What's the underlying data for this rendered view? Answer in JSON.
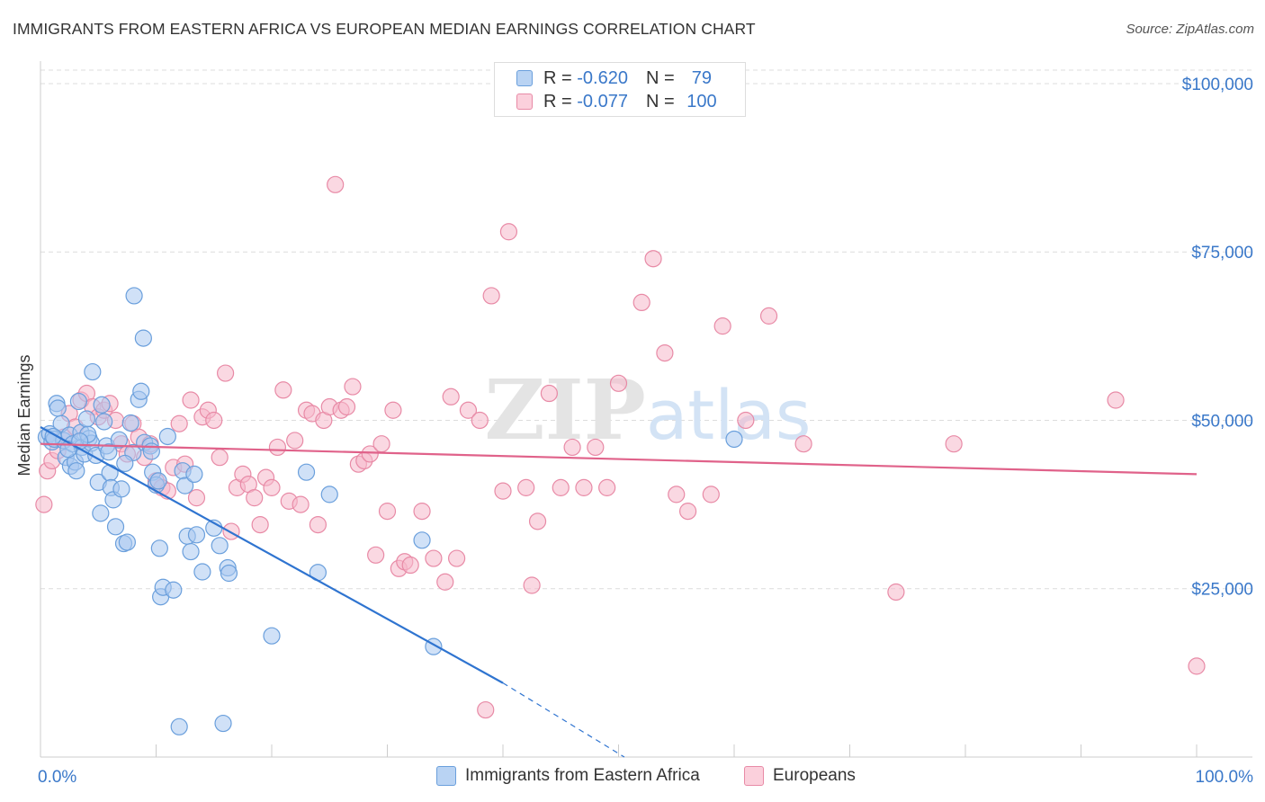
{
  "title": "IMMIGRANTS FROM EASTERN AFRICA VS EUROPEAN MEDIAN EARNINGS CORRELATION CHART",
  "source": "Source: ZipAtlas.com",
  "watermark": "ZIPatlas",
  "legend": {
    "rows": [
      {
        "r_label": "R = ",
        "r_value": "-0.620",
        "n_label": "N = ",
        "n_value": " 79",
        "color": "#9fc3ee",
        "border": "#6a9fdc"
      },
      {
        "r_label": "R = ",
        "r_value": "-0.077",
        "n_label": "N = ",
        "n_value": "100",
        "color": "#f7b9cb",
        "border": "#e88aa6"
      }
    ]
  },
  "chart_data": {
    "type": "scatter",
    "title": "IMMIGRANTS FROM EASTERN AFRICA VS EUROPEAN MEDIAN EARNINGS CORRELATION CHART",
    "xlabel": "",
    "ylabel": "Median Earnings",
    "xlim": [
      0,
      100
    ],
    "ylim": [
      0,
      102000
    ],
    "x_tick_labels": [
      "0.0%",
      "100.0%"
    ],
    "y_ticks": [
      25000,
      50000,
      75000,
      100000
    ],
    "y_tick_labels": [
      "$25,000",
      "$50,000",
      "$75,000",
      "$100,000"
    ],
    "grid": true,
    "legend_position": "top-center and bottom",
    "series": [
      {
        "name": "Immigrants from Eastern Africa",
        "color": "#6a9fdc",
        "fill": "#a9c9f0",
        "trend": {
          "x0": 0,
          "y0": 49000,
          "x1": 40,
          "y1": 11000,
          "dash_to_x": 50.5,
          "dash_to_y": 0,
          "color": "#2f74d0"
        },
        "points": [
          [
            0.5,
            47500
          ],
          [
            0.8,
            48000
          ],
          [
            1.0,
            46800
          ],
          [
            1.2,
            47200
          ],
          [
            1.4,
            52500
          ],
          [
            1.5,
            51800
          ],
          [
            1.8,
            49500
          ],
          [
            2.0,
            47000
          ],
          [
            2.2,
            44500
          ],
          [
            2.5,
            47800
          ],
          [
            2.6,
            43200
          ],
          [
            2.8,
            46500
          ],
          [
            3.0,
            43800
          ],
          [
            3.1,
            42500
          ],
          [
            3.3,
            52800
          ],
          [
            3.5,
            48200
          ],
          [
            3.6,
            46000
          ],
          [
            3.8,
            45000
          ],
          [
            4.0,
            50200
          ],
          [
            4.2,
            47300
          ],
          [
            4.4,
            46600
          ],
          [
            4.5,
            57200
          ],
          [
            4.8,
            44800
          ],
          [
            5.0,
            40800
          ],
          [
            5.2,
            36200
          ],
          [
            5.3,
            52300
          ],
          [
            5.5,
            49800
          ],
          [
            5.7,
            46200
          ],
          [
            6.0,
            42200
          ],
          [
            6.1,
            40000
          ],
          [
            6.3,
            38200
          ],
          [
            6.5,
            34200
          ],
          [
            7.0,
            39800
          ],
          [
            7.2,
            31700
          ],
          [
            7.5,
            31900
          ],
          [
            7.8,
            49600
          ],
          [
            8.0,
            45200
          ],
          [
            8.1,
            68500
          ],
          [
            8.5,
            53100
          ],
          [
            8.7,
            54300
          ],
          [
            8.9,
            62200
          ],
          [
            9.0,
            46700
          ],
          [
            9.5,
            46200
          ],
          [
            9.6,
            45400
          ],
          [
            9.7,
            42300
          ],
          [
            10.0,
            40400
          ],
          [
            10.2,
            41000
          ],
          [
            10.3,
            31000
          ],
          [
            10.4,
            23800
          ],
          [
            10.6,
            25200
          ],
          [
            11.0,
            47600
          ],
          [
            11.5,
            24800
          ],
          [
            12.0,
            4500
          ],
          [
            12.3,
            42500
          ],
          [
            12.5,
            40300
          ],
          [
            12.7,
            32800
          ],
          [
            13.0,
            30500
          ],
          [
            13.3,
            42000
          ],
          [
            13.5,
            33000
          ],
          [
            14.0,
            27500
          ],
          [
            15.0,
            34000
          ],
          [
            15.5,
            31400
          ],
          [
            15.8,
            5000
          ],
          [
            16.2,
            28100
          ],
          [
            16.3,
            27300
          ],
          [
            20.0,
            18000
          ],
          [
            23.0,
            42300
          ],
          [
            24.0,
            27400
          ],
          [
            25.0,
            39000
          ],
          [
            33.0,
            32200
          ],
          [
            34.0,
            16400
          ],
          [
            60.0,
            47200
          ],
          [
            4.1,
            47900
          ],
          [
            2.4,
            45700
          ],
          [
            1.1,
            47600
          ],
          [
            6.8,
            47100
          ],
          [
            3.4,
            46900
          ],
          [
            5.9,
            45300
          ],
          [
            7.3,
            43600
          ]
        ]
      },
      {
        "name": "Europeans",
        "color": "#e88aa6",
        "fill": "#f5b8ca",
        "trend": {
          "x0": 0,
          "y0": 46500,
          "x1": 100,
          "y1": 42000,
          "color": "#e0628a"
        },
        "points": [
          [
            0.3,
            37500
          ],
          [
            0.6,
            42500
          ],
          [
            1.0,
            44000
          ],
          [
            1.5,
            45500
          ],
          [
            2.0,
            47500
          ],
          [
            2.5,
            51000
          ],
          [
            3.0,
            49000
          ],
          [
            3.5,
            53000
          ],
          [
            4.0,
            54000
          ],
          [
            4.5,
            52000
          ],
          [
            5.0,
            50500
          ],
          [
            5.5,
            51500
          ],
          [
            6.0,
            52500
          ],
          [
            6.5,
            50000
          ],
          [
            7.0,
            46500
          ],
          [
            7.5,
            45000
          ],
          [
            8.0,
            49500
          ],
          [
            8.5,
            47500
          ],
          [
            9.0,
            44500
          ],
          [
            9.5,
            46500
          ],
          [
            10.0,
            41000
          ],
          [
            10.5,
            40000
          ],
          [
            11.0,
            39500
          ],
          [
            11.5,
            43000
          ],
          [
            12.0,
            49500
          ],
          [
            12.5,
            43500
          ],
          [
            13.0,
            53000
          ],
          [
            13.5,
            38500
          ],
          [
            14.0,
            50500
          ],
          [
            14.5,
            51500
          ],
          [
            15.0,
            50000
          ],
          [
            15.5,
            44500
          ],
          [
            16.0,
            57000
          ],
          [
            16.5,
            33500
          ],
          [
            17.0,
            40000
          ],
          [
            17.5,
            42000
          ],
          [
            18.0,
            40500
          ],
          [
            18.5,
            38500
          ],
          [
            19.0,
            34500
          ],
          [
            19.5,
            41500
          ],
          [
            20.0,
            40000
          ],
          [
            20.5,
            46000
          ],
          [
            21.0,
            54500
          ],
          [
            21.5,
            38000
          ],
          [
            22.0,
            47000
          ],
          [
            22.5,
            37500
          ],
          [
            23.0,
            51500
          ],
          [
            23.5,
            51000
          ],
          [
            24.0,
            34500
          ],
          [
            24.5,
            50000
          ],
          [
            25.0,
            52000
          ],
          [
            25.5,
            85000
          ],
          [
            26.0,
            51500
          ],
          [
            26.5,
            52000
          ],
          [
            27.0,
            55000
          ],
          [
            27.5,
            43500
          ],
          [
            28.0,
            44000
          ],
          [
            28.5,
            45000
          ],
          [
            29.0,
            30000
          ],
          [
            29.5,
            46500
          ],
          [
            30.0,
            36500
          ],
          [
            30.5,
            51500
          ],
          [
            31.0,
            28000
          ],
          [
            31.5,
            29000
          ],
          [
            32.0,
            28500
          ],
          [
            33.0,
            36500
          ],
          [
            34.0,
            29500
          ],
          [
            35.0,
            26000
          ],
          [
            35.5,
            53500
          ],
          [
            36.0,
            29500
          ],
          [
            37.0,
            51500
          ],
          [
            38.0,
            50000
          ],
          [
            38.5,
            7000
          ],
          [
            39.0,
            68500
          ],
          [
            40.0,
            39500
          ],
          [
            40.5,
            78000
          ],
          [
            42.0,
            40000
          ],
          [
            42.5,
            25500
          ],
          [
            43.0,
            35000
          ],
          [
            44.0,
            54000
          ],
          [
            45.0,
            40000
          ],
          [
            46.0,
            46000
          ],
          [
            47.0,
            40000
          ],
          [
            48.0,
            46000
          ],
          [
            49.0,
            40000
          ],
          [
            50.0,
            55500
          ],
          [
            52.0,
            67500
          ],
          [
            53.0,
            74000
          ],
          [
            54.0,
            60000
          ],
          [
            55.0,
            39000
          ],
          [
            56.0,
            36500
          ],
          [
            58.0,
            39000
          ],
          [
            59.0,
            64000
          ],
          [
            61.0,
            50000
          ],
          [
            63.0,
            65500
          ],
          [
            66.0,
            46500
          ],
          [
            74.0,
            24500
          ],
          [
            79.0,
            46500
          ],
          [
            93.0,
            53000
          ],
          [
            100.0,
            13500
          ]
        ]
      }
    ]
  },
  "bottom_legend": [
    {
      "label": "Immigrants from Eastern Africa",
      "color": "#a9c9f0",
      "border": "#6a9fdc"
    },
    {
      "label": "Europeans",
      "color": "#f7c2d2",
      "border": "#e88aa6"
    }
  ]
}
